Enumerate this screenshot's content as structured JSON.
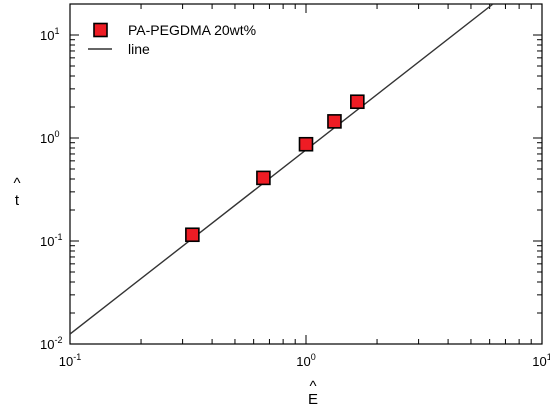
{
  "chart_data": {
    "type": "scatter",
    "x_scale": "log",
    "y_scale": "log",
    "xlim": [
      0.1,
      10
    ],
    "ylim": [
      0.01,
      20
    ],
    "x_ticks": [
      {
        "value": 0.1,
        "base": "10",
        "exp": "-1"
      },
      {
        "value": 1,
        "base": "10",
        "exp": "0"
      },
      {
        "value": 10,
        "base": "10",
        "exp": "1"
      }
    ],
    "y_ticks": [
      {
        "value": 0.01,
        "base": "10",
        "exp": "-2"
      },
      {
        "value": 0.1,
        "base": "10",
        "exp": "-1"
      },
      {
        "value": 1,
        "base": "10",
        "exp": "0"
      },
      {
        "value": 10,
        "base": "10",
        "exp": "1"
      }
    ],
    "xlabel": "E",
    "xlabel_hat": "^",
    "ylabel": "t",
    "ylabel_hat": "^",
    "grid": false,
    "legend_position": "top-left",
    "series": [
      {
        "name": "PA-PEGDMA 20wt%",
        "kind": "scatter",
        "marker": "square",
        "color": "#ee1c24",
        "edge_color": "#000000",
        "points": [
          {
            "x": 0.33,
            "y": 0.115
          },
          {
            "x": 0.66,
            "y": 0.41
          },
          {
            "x": 1.0,
            "y": 0.87
          },
          {
            "x": 1.32,
            "y": 1.45
          },
          {
            "x": 1.65,
            "y": 2.25
          }
        ]
      },
      {
        "name": "line",
        "kind": "line",
        "color": "#333333",
        "points": [
          {
            "x": 0.1,
            "y": 0.0125
          },
          {
            "x": 6.2,
            "y": 20
          }
        ]
      }
    ]
  }
}
